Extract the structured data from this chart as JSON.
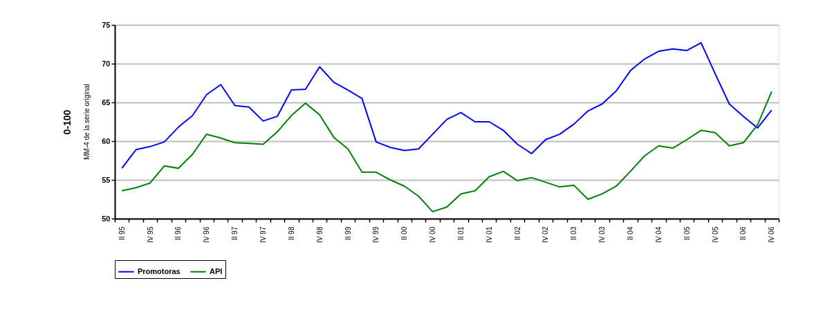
{
  "chart_data": {
    "type": "line",
    "ylabel": "0-100",
    "annotations": [
      "MM-4 de la serie original"
    ],
    "categories": [
      "II 95",
      null,
      "IV 95",
      null,
      "II 96",
      null,
      "IV 96",
      null,
      "II 97",
      null,
      "IV 97",
      null,
      "II 98",
      null,
      "IV 98",
      null,
      "II 99",
      null,
      "IV 99",
      null,
      "II 00",
      null,
      "IV 00",
      null,
      "II 01",
      null,
      "IV 01",
      null,
      "II 02",
      null,
      "IV 02",
      null,
      "II 03",
      null,
      "IV 03",
      null,
      "II 04",
      null,
      "IV 04",
      null,
      "II 05",
      null,
      "IV 05",
      null,
      "II 06",
      null,
      "IV 06"
    ],
    "series": [
      {
        "name": "Promotoras",
        "color": "#0000ff",
        "values": [
          56.5,
          58.9,
          59.3,
          59.9,
          61.8,
          63.3,
          66.0,
          67.3,
          64.6,
          64.4,
          62.6,
          63.2,
          66.6,
          66.7,
          69.6,
          67.6,
          66.6,
          65.5,
          59.9,
          59.2,
          58.8,
          59.0,
          60.9,
          62.8,
          63.7,
          62.5,
          62.5,
          61.4,
          59.6,
          58.4,
          60.2,
          60.9,
          62.2,
          63.9,
          64.8,
          66.5,
          69.1,
          70.6,
          71.6,
          71.9,
          71.7,
          72.7,
          68.7,
          64.8,
          63.2,
          61.7,
          64.0
        ]
      },
      {
        "name": "API",
        "color": "#008000",
        "values": [
          53.6,
          54.0,
          54.6,
          56.8,
          56.5,
          58.3,
          60.9,
          60.4,
          59.8,
          59.7,
          59.6,
          61.2,
          63.3,
          64.9,
          63.4,
          60.5,
          59.0,
          56.0,
          56.0,
          55.0,
          54.2,
          52.9,
          50.9,
          51.5,
          53.2,
          53.6,
          55.4,
          56.1,
          54.9,
          55.3,
          54.7,
          54.1,
          54.3,
          52.5,
          53.2,
          54.2,
          56.1,
          58.1,
          59.4,
          59.1,
          60.2,
          61.4,
          61.1,
          59.4,
          59.8,
          62.1,
          66.4
        ]
      }
    ],
    "ylim": [
      50,
      75
    ],
    "yticks": [
      50,
      55,
      60,
      65,
      70,
      75
    ],
    "grid": "y",
    "legend": "bottom",
    "marker": "none",
    "line_style": "solid"
  }
}
